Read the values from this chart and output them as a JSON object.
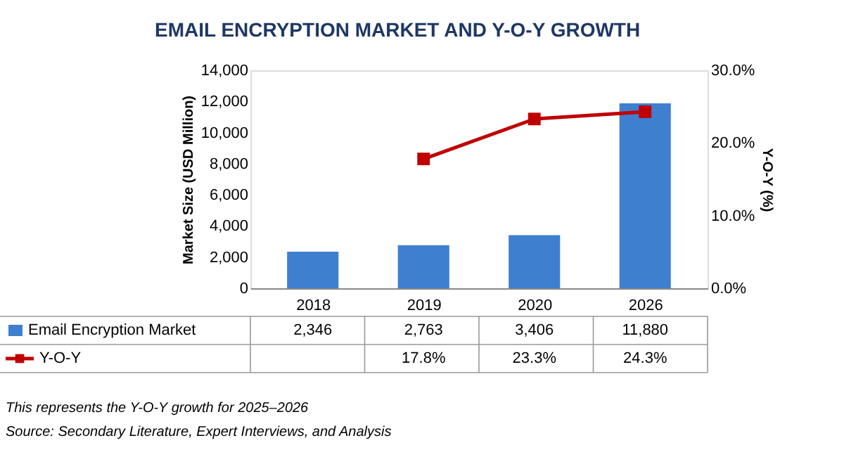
{
  "chart_data": {
    "type": "bar",
    "title": "EMAIL ENCRYPTION MARKET AND Y-O-Y GROWTH",
    "ylabel": "Market Size (USD Million)",
    "y2label": "Y-O-Y (%)",
    "categories": [
      "2018",
      "2019",
      "2020",
      "2026"
    ],
    "series": [
      {
        "name": "Email Encryption Market",
        "color": "#3f7fcf",
        "values": [
          2346,
          2763,
          3406,
          11880
        ],
        "value_labels": [
          "2,346",
          "2,763",
          "3,406",
          "11,880"
        ]
      },
      {
        "name": "Y-O-Y",
        "type": "line",
        "axis": "y2",
        "color": "#c00000",
        "marker": "square",
        "values": [
          null,
          17.8,
          23.3,
          24.3
        ],
        "value_labels": [
          null,
          "17.8%",
          "23.3%",
          "24.3%"
        ]
      }
    ],
    "ylim": [
      0,
      14000
    ],
    "yticks": [
      0,
      {
        "value": 2000,
        "label": "2,000"
      },
      {
        "value": 4000,
        "label": "4,000"
      },
      {
        "value": 6000,
        "label": "6,000"
      },
      {
        "value": 8000,
        "label": "8,000"
      },
      {
        "value": 10000,
        "label": "10,000"
      },
      {
        "value": 12000,
        "label": "12,000"
      },
      {
        "value": 14000,
        "label": "14,000"
      }
    ],
    "y2lim": [
      0,
      30
    ],
    "y2ticks": [
      {
        "value": 0,
        "label": "0.0%"
      },
      {
        "value": 10,
        "label": "10.0%"
      },
      {
        "value": 20,
        "label": "20.0%"
      },
      {
        "value": 30,
        "label": "30.0%"
      }
    ],
    "legend": "bottom",
    "grid": false,
    "annotations": [
      "This represents the Y-O-Y growth for 2025–2026",
      "Source: Secondary Literature, Expert Interviews, and Analysis"
    ]
  }
}
